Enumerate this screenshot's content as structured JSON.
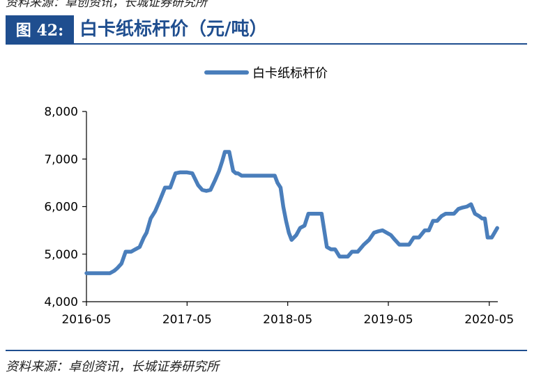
{
  "header": {
    "top_cut_text": "资料来源：卓创资讯，长城证券研究所",
    "figure_label": "图 42:",
    "figure_title": "白卡纸标杆价（元/吨）"
  },
  "footer": {
    "source": "资料来源：卓创资讯，长城证券研究所"
  },
  "colors": {
    "line": "#4a7ebb",
    "accent": "#1f4e8f"
  },
  "chart_data": {
    "type": "line",
    "title": "白卡纸标杆价（元/吨）",
    "xlabel": "",
    "ylabel": "",
    "ylim": [
      4000,
      8000
    ],
    "yticks": [
      4000,
      5000,
      6000,
      7000,
      8000
    ],
    "ytick_labels": [
      "4,000",
      "5,000",
      "6,000",
      "7,000",
      "8,000"
    ],
    "xlim": [
      "2016-05-01",
      "2020-06-01"
    ],
    "xticks": [
      "2016-05-01",
      "2017-05-01",
      "2018-05-01",
      "2019-05-01",
      "2020-05-01"
    ],
    "xtick_labels": [
      "2016-05",
      "2017-05",
      "2018-05",
      "2019-05",
      "2020-05"
    ],
    "grid": false,
    "legend_position": "top",
    "series": [
      {
        "name": "白卡纸标杆价",
        "x": [
          "2016-05-01",
          "2016-06-15",
          "2016-07-25",
          "2016-08-10",
          "2016-08-20",
          "2016-09-05",
          "2016-09-20",
          "2016-10-10",
          "2016-10-25",
          "2016-11-10",
          "2016-11-25",
          "2016-12-05",
          "2016-12-20",
          "2017-01-05",
          "2017-01-20",
          "2017-02-10",
          "2017-03-01",
          "2017-03-20",
          "2017-04-05",
          "2017-05-01",
          "2017-05-20",
          "2017-06-10",
          "2017-06-25",
          "2017-07-10",
          "2017-07-25",
          "2017-08-10",
          "2017-08-25",
          "2017-09-05",
          "2017-09-15",
          "2017-10-01",
          "2017-10-15",
          "2017-10-25",
          "2017-11-01",
          "2017-11-15",
          "2017-12-01",
          "2017-12-15",
          "2018-01-01",
          "2018-02-01",
          "2018-03-15",
          "2018-03-25",
          "2018-04-05",
          "2018-04-15",
          "2018-04-25",
          "2018-05-05",
          "2018-05-15",
          "2018-06-01",
          "2018-06-15",
          "2018-07-01",
          "2018-07-15",
          "2018-08-01",
          "2018-08-15",
          "2018-09-01",
          "2018-09-20",
          "2018-10-05",
          "2018-10-20",
          "2018-11-05",
          "2018-11-20",
          "2018-12-05",
          "2018-12-20",
          "2019-01-10",
          "2019-02-01",
          "2019-02-20",
          "2019-03-10",
          "2019-03-25",
          "2019-04-10",
          "2019-04-25",
          "2019-05-10",
          "2019-05-25",
          "2019-06-10",
          "2019-06-25",
          "2019-07-15",
          "2019-08-01",
          "2019-08-20",
          "2019-09-10",
          "2019-09-25",
          "2019-10-10",
          "2019-10-25",
          "2019-11-10",
          "2019-11-25",
          "2019-12-10",
          "2019-12-25",
          "2020-01-10",
          "2020-01-25",
          "2020-02-10",
          "2020-02-25",
          "2020-03-10",
          "2020-03-25",
          "2020-04-05",
          "2020-04-15",
          "2020-04-25",
          "2020-05-10",
          "2020-05-20",
          "2020-05-30"
        ],
        "values": [
          4600,
          4600,
          4600,
          4650,
          4700,
          4800,
          5050,
          5050,
          5100,
          5150,
          5350,
          5450,
          5750,
          5900,
          6100,
          6400,
          6400,
          6700,
          6720,
          6720,
          6700,
          6450,
          6350,
          6330,
          6350,
          6550,
          6750,
          6950,
          7150,
          7150,
          6750,
          6700,
          6700,
          6650,
          6650,
          6650,
          6650,
          6650,
          6650,
          6500,
          6400,
          6000,
          5700,
          5450,
          5300,
          5400,
          5550,
          5600,
          5850,
          5850,
          5850,
          5850,
          5150,
          5100,
          5100,
          4950,
          4950,
          4950,
          5050,
          5050,
          5200,
          5300,
          5450,
          5480,
          5500,
          5450,
          5400,
          5300,
          5200,
          5200,
          5200,
          5350,
          5350,
          5500,
          5500,
          5700,
          5700,
          5800,
          5850,
          5850,
          5850,
          5950,
          5980,
          6000,
          6050,
          5850,
          5800,
          5750,
          5750,
          5350,
          5350,
          5450,
          5550
        ]
      }
    ]
  }
}
